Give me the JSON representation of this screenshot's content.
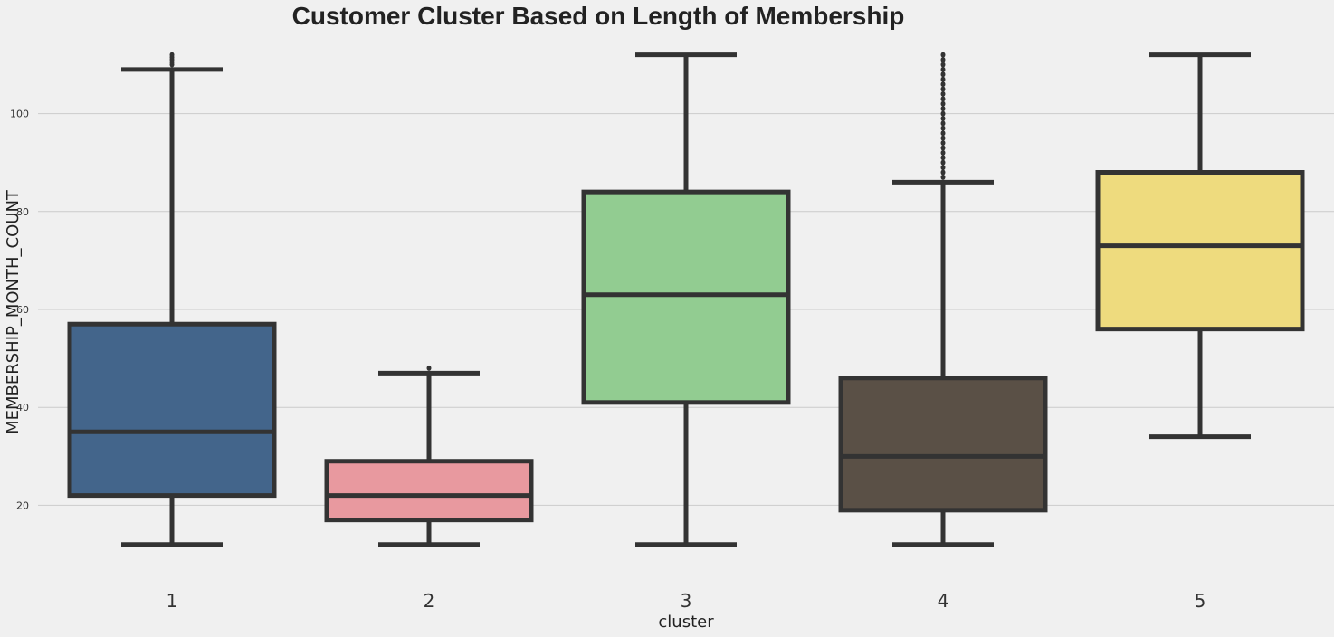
{
  "chart_data": {
    "type": "box",
    "title": "Customer Cluster Based on Length of Membership",
    "xlabel": "cluster",
    "ylabel": "MEMBERSHIP_MONTH_COUNT",
    "ylim": [
      4,
      116
    ],
    "yticks": [
      20,
      40,
      60,
      80,
      100
    ],
    "grid": "horizontal",
    "categories": [
      "1",
      "2",
      "3",
      "4",
      "5"
    ],
    "boxes": [
      {
        "category": "1",
        "color": "#43658b",
        "whisker_low": 12,
        "q1": 22,
        "median": 35,
        "q3": 57,
        "whisker_high": 109,
        "outliers": [
          110,
          110.5,
          111,
          111.5,
          112
        ]
      },
      {
        "category": "2",
        "color": "#e8999f",
        "whisker_low": 12,
        "q1": 17,
        "median": 22,
        "q3": 29,
        "whisker_high": 47,
        "outliers": [
          48
        ]
      },
      {
        "category": "3",
        "color": "#92cc91",
        "whisker_low": 12,
        "q1": 41,
        "median": 63,
        "q3": 84,
        "whisker_high": 112,
        "outliers": []
      },
      {
        "category": "4",
        "color": "#5a5046",
        "whisker_low": 12,
        "q1": 19,
        "median": 30,
        "q3": 46,
        "whisker_high": 86,
        "outliers": [
          87,
          88,
          89,
          90,
          91,
          92,
          93,
          94,
          95,
          96,
          97,
          98,
          99,
          100,
          101,
          102,
          103,
          104,
          105,
          106,
          107,
          108,
          109,
          110,
          111,
          112
        ]
      },
      {
        "category": "5",
        "color": "#eedb7e",
        "whisker_low": 34,
        "q1": 56,
        "median": 73,
        "q3": 88,
        "whisker_high": 112,
        "outliers": []
      }
    ]
  }
}
